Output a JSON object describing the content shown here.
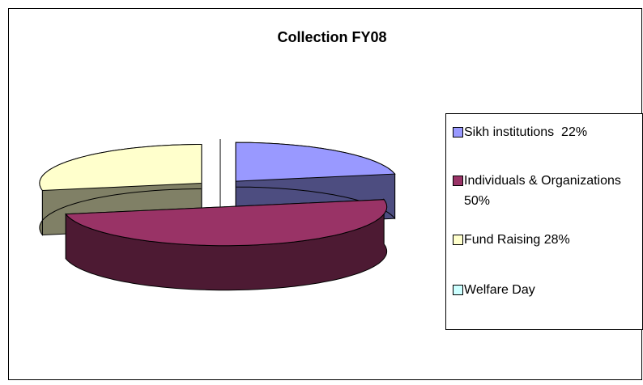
{
  "chart_data": {
    "type": "pie",
    "title": "Collection FY08",
    "categories": [
      "Sikh institutions  22%",
      "Individuals & Organizations  50%",
      "Fund Raising 28%",
      "Welfare Day"
    ],
    "values": [
      22,
      50,
      28,
      0
    ],
    "colors": [
      "#9999ff",
      "#993366",
      "#ffffcc",
      "#ccffff"
    ],
    "legend": "right"
  }
}
